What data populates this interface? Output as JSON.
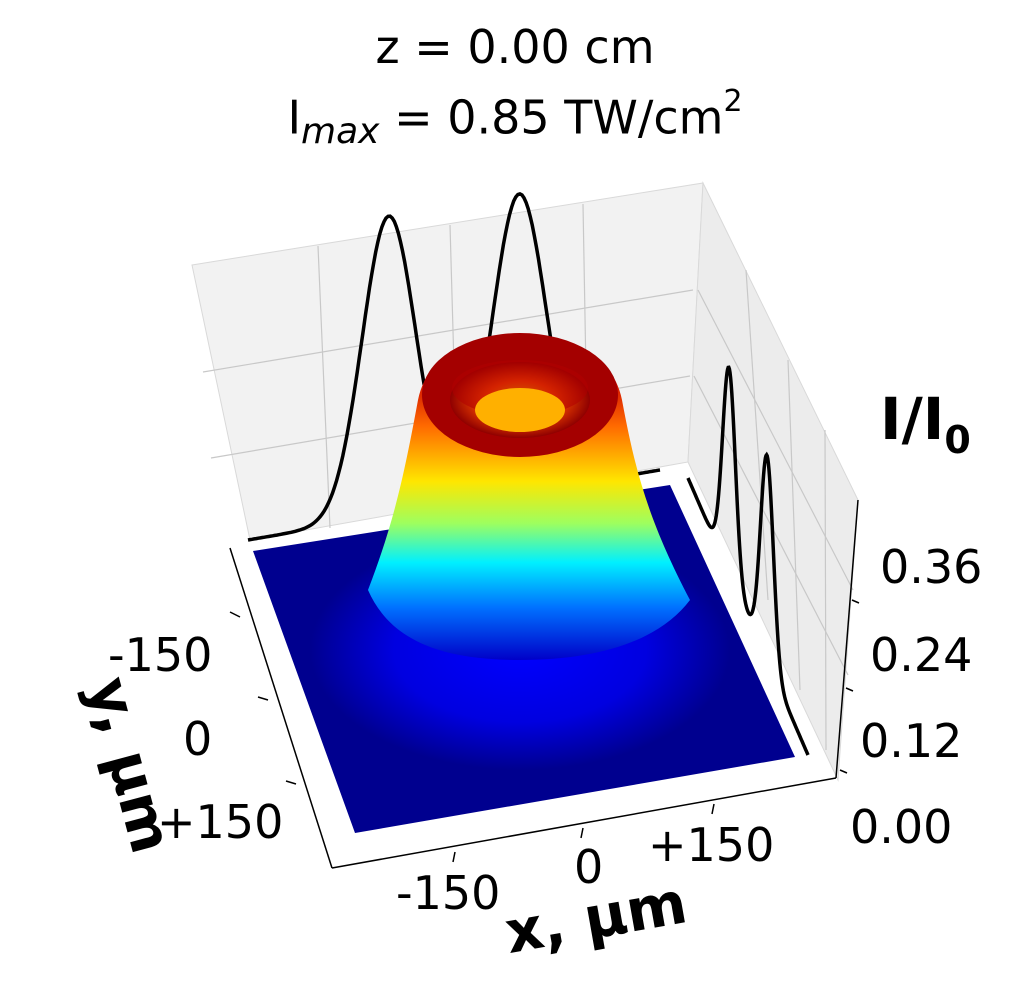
{
  "chart_data": {
    "type": "surface3d",
    "title_line1": "z = 0.00 cm",
    "title_line2": {
      "prefix": "I",
      "subscript": "max",
      "middle": " = 0.85 TW/cm",
      "superscript": "2"
    },
    "xlabel": "x, µm",
    "ylabel": "y, µm",
    "zlabel": {
      "base": "I/I",
      "subscript": "0"
    },
    "x_ticks": [
      "-150",
      "0",
      "+150"
    ],
    "y_ticks": [
      "-150",
      "0",
      "+150"
    ],
    "z_ticks": [
      "0.00",
      "0.12",
      "0.24",
      "0.36"
    ],
    "xlim": [
      -300,
      300
    ],
    "ylim": [
      -300,
      300
    ],
    "zlim": [
      0,
      0.48
    ],
    "colormap": "jet",
    "surface": "ring-shaped intensity profile centered at x=0, y=0",
    "projections": [
      {
        "plane": "back wall (x-z)",
        "shape": "two-peak profile",
        "peaks_x_um": [
          -90,
          90
        ],
        "style": "black solid line"
      },
      {
        "plane": "side wall (y-z)",
        "shape": "two-peak profile",
        "peaks_y_um": [
          -90,
          90
        ],
        "style": "black solid line"
      }
    ],
    "grid": true
  },
  "colors": {
    "pane": "#f2f2f2",
    "gridline": "#cccccc",
    "projection_line": "#000000",
    "floor": "#00008f"
  }
}
